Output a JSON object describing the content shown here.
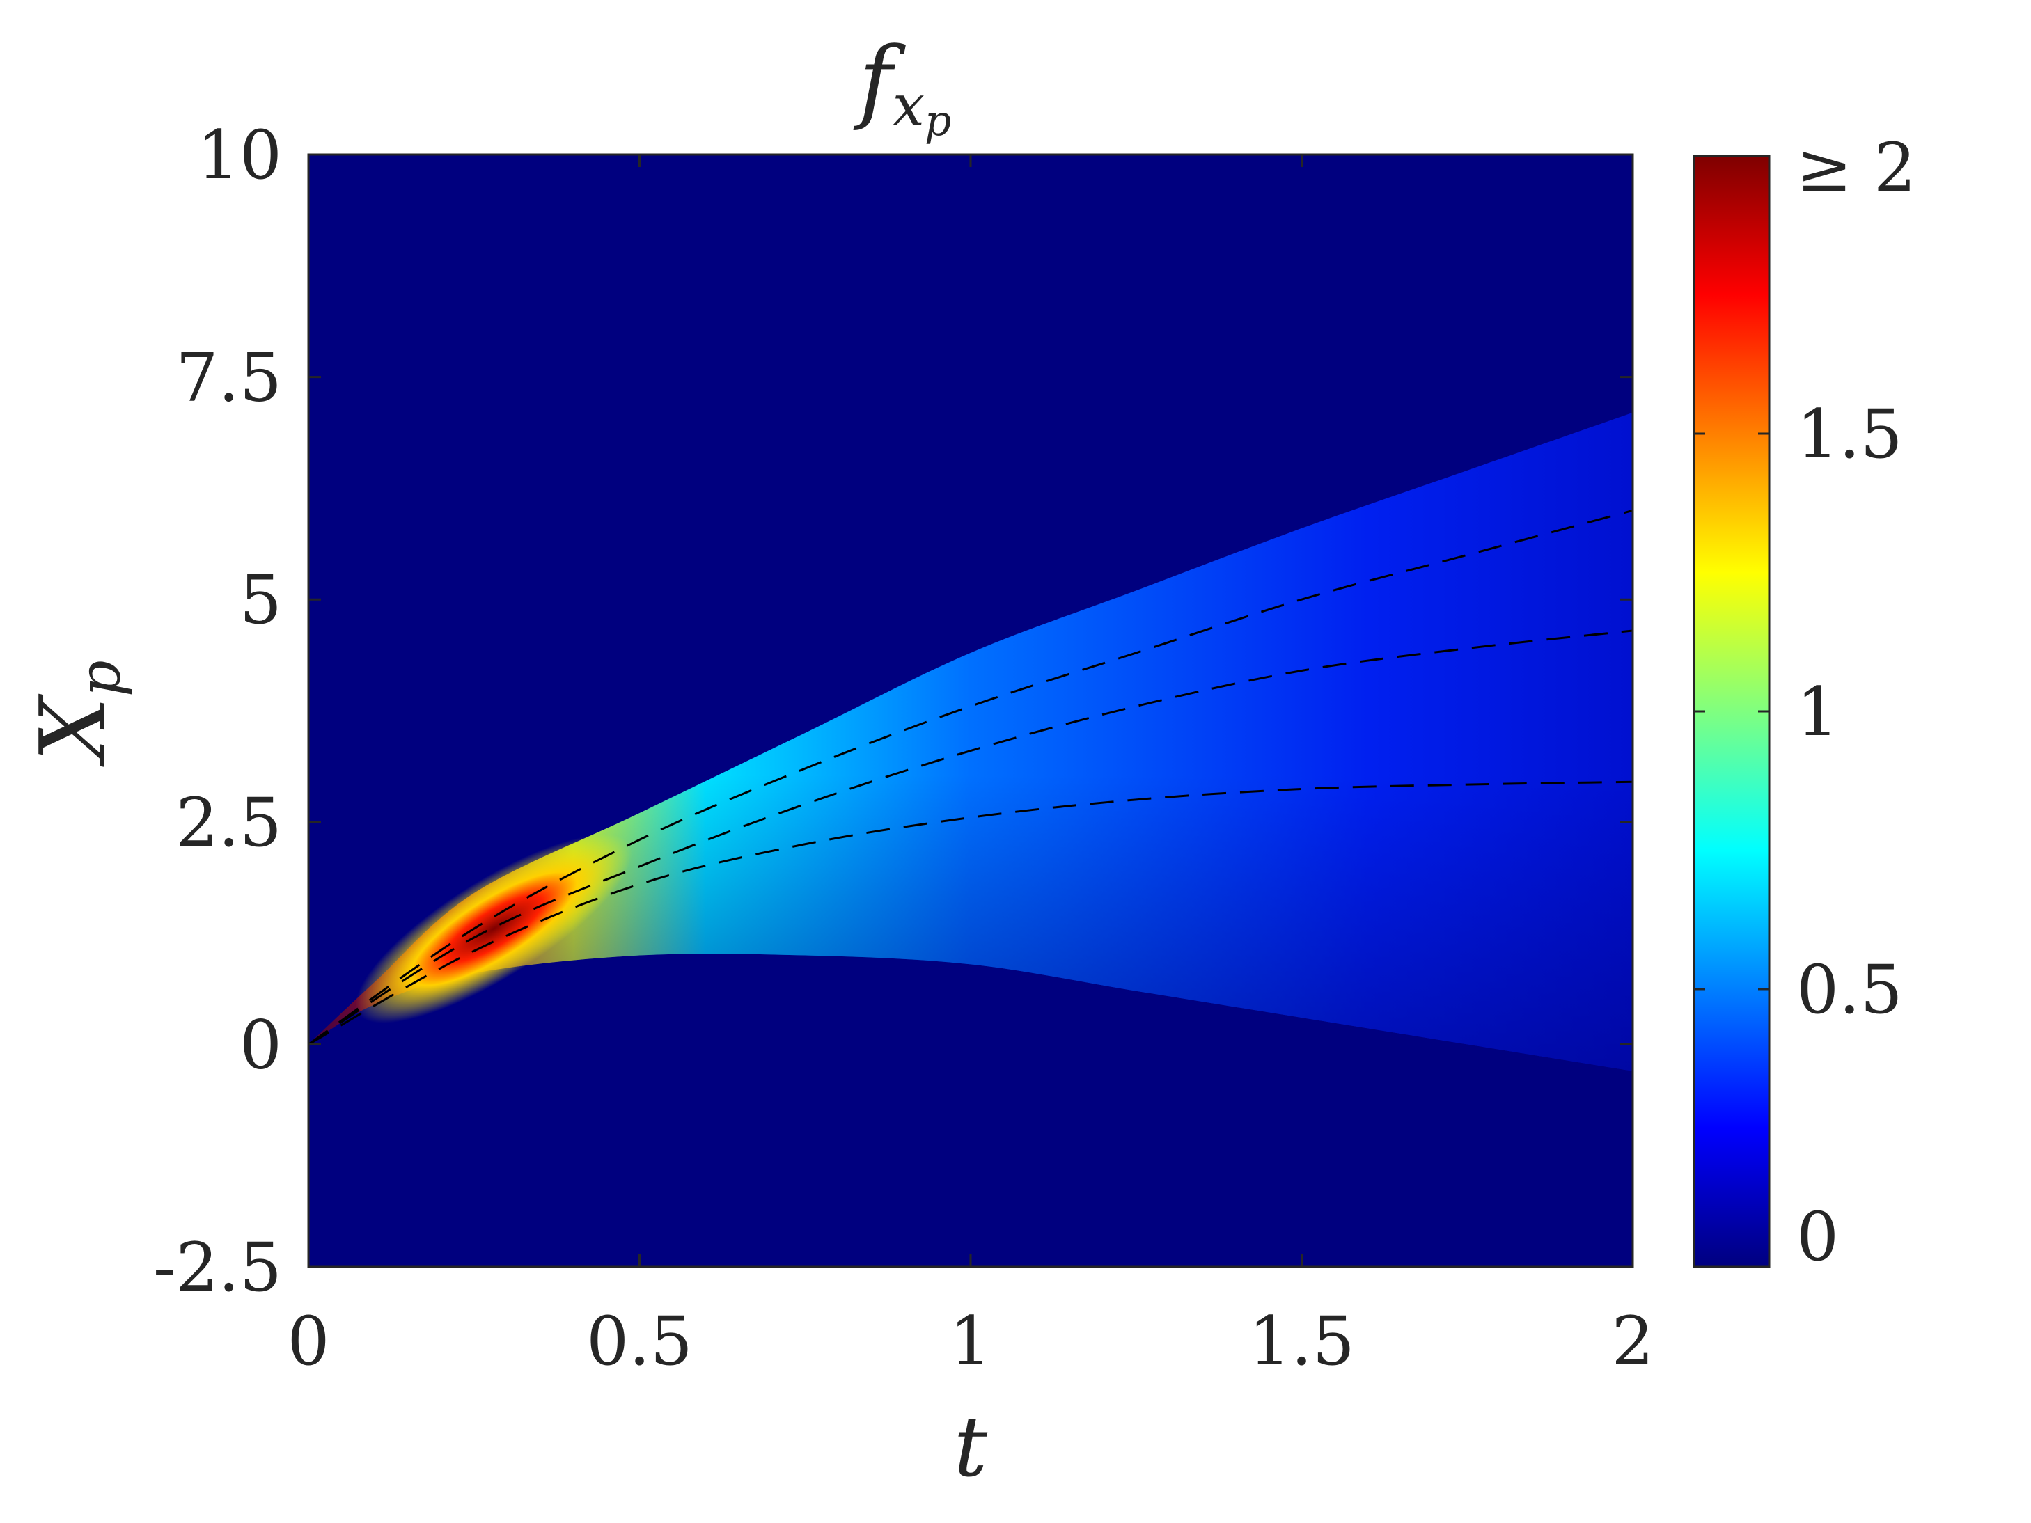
{
  "chart_data": {
    "type": "heatmap",
    "title": {
      "main": "f",
      "sub": "x",
      "subsub": "p"
    },
    "xlabel": "t",
    "ylabel": {
      "main": "X",
      "sub": "p"
    },
    "xlim": [
      0,
      2
    ],
    "ylim": [
      -2.5,
      10
    ],
    "xticks": [
      0,
      0.5,
      1,
      1.5,
      2
    ],
    "xtick_labels": [
      "0",
      "0.5",
      "1",
      "1.5",
      "2"
    ],
    "yticks": [
      -2.5,
      0,
      2.5,
      5,
      7.5,
      10
    ],
    "ytick_labels": [
      "-2.5",
      "0",
      "2.5",
      "5",
      "7.5",
      "10"
    ],
    "colormap": "jet",
    "clim": [
      0,
      2
    ],
    "colorbar_ticks": [
      0,
      0.5,
      1,
      1.5,
      2
    ],
    "colorbar_tick_labels": [
      "0",
      "0.5",
      "1",
      "1.5",
      "≥ 2"
    ],
    "background_color": "#00007f",
    "region": {
      "t": [
        0,
        0.1,
        0.25,
        0.5,
        0.75,
        1.0,
        1.25,
        1.5,
        1.75,
        2.0
      ],
      "upper": [
        0,
        0.7,
        1.7,
        2.6,
        3.5,
        4.4,
        5.1,
        5.8,
        6.45,
        7.1
      ],
      "lower": [
        0,
        0.45,
        0.8,
        1.0,
        1.0,
        0.9,
        0.6,
        0.3,
        0.0,
        -0.3
      ]
    },
    "dashed_lines": [
      {
        "t": [
          0,
          0.25,
          0.5,
          0.75,
          1.0,
          1.25,
          1.5,
          1.75,
          2.0
        ],
        "x": [
          0,
          1.3,
          2.3,
          3.1,
          3.8,
          4.4,
          5.0,
          5.5,
          6.0
        ]
      },
      {
        "t": [
          0,
          0.25,
          0.5,
          0.75,
          1.0,
          1.25,
          1.5,
          1.75,
          2.0
        ],
        "x": [
          0,
          1.2,
          2.0,
          2.7,
          3.3,
          3.8,
          4.2,
          4.45,
          4.65
        ]
      },
      {
        "t": [
          0,
          0.25,
          0.5,
          0.75,
          1.0,
          1.25,
          1.5,
          1.75,
          2.0
        ],
        "x": [
          0,
          1.05,
          1.8,
          2.25,
          2.55,
          2.75,
          2.87,
          2.92,
          2.95
        ]
      }
    ]
  }
}
